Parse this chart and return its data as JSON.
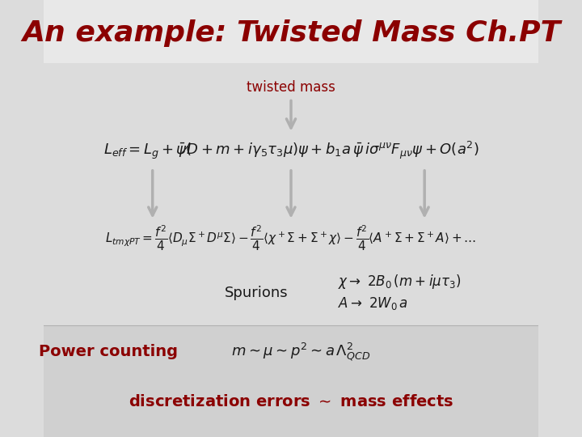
{
  "title": "An example: Twisted Mass Ch.PT",
  "title_color": "#8B0000",
  "title_fontsize": 26,
  "bg_color_top": "#E0E0E0",
  "bg_color_bottom": "#D3D3D3",
  "text_color_dark": "#8B0000",
  "text_color_black": "#1a1a1a",
  "arrow_color": "#B0B0B0",
  "twisted_mass_label": "twisted mass",
  "eq1": "$L_{eff} = L_g + \\overline{\\psi}(\\not{D} + m + i\\gamma_5\\tau_3\\mu)\\psi + b_1 a\\,\\overline{\\psi}\\,i\\sigma^{\\mu\\nu}F_{\\mu\\nu}\\psi + O(a^2)$",
  "eq2": "$L_{tm\\chi PT} = \\dfrac{f^2}{4}\\langle D_\\mu\\Sigma^+ D^\\mu\\Sigma\\rangle - \\dfrac{f^2}{4}\\langle\\chi^+\\Sigma + \\Sigma^+\\chi\\rangle - \\dfrac{f^2}{4}\\langle A^+\\Sigma + \\Sigma^+ A\\rangle + \\ldots$",
  "spurions_label": "Spurions",
  "spurions_chi": "$\\chi \\rightarrow 2B_0\\,(m+i\\mu\\tau_3)$",
  "spurions_A": "$A \\rightarrow 2W_0\\,a$",
  "power_counting_label": "Power counting",
  "power_counting_eq": "$m \\sim \\mu \\sim p^2 \\sim a\\,\\Lambda_{QCD}^2$",
  "bottom_text": "discretization errors $\\sim$ mass effects"
}
